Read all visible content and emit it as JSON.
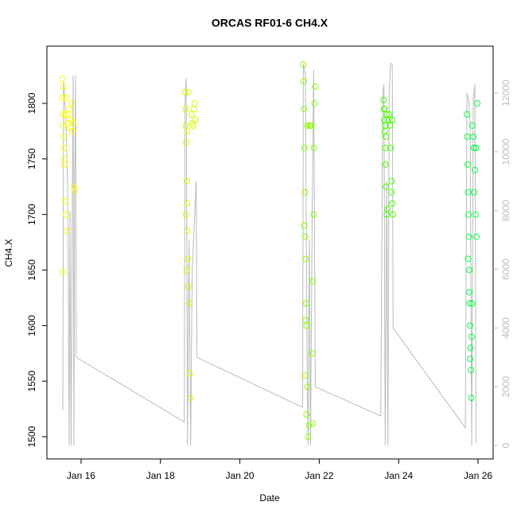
{
  "chart_data": {
    "type": "scatter",
    "title": "ORCAS RF01-6 CH4.X",
    "x_label": "Date",
    "y_label": "CH4.X",
    "xlim": [
      15.14,
      26.38
    ],
    "xticks": [
      {
        "value": 16,
        "label": "Jan 16"
      },
      {
        "value": 18,
        "label": "Jan 18"
      },
      {
        "value": 20,
        "label": "Jan 20"
      },
      {
        "value": 22,
        "label": "Jan 22"
      },
      {
        "value": 24,
        "label": "Jan 24"
      },
      {
        "value": 26,
        "label": "Jan 26"
      }
    ],
    "ylim": [
      1480,
      1851.5
    ],
    "yticks": [
      1500,
      1550,
      1600,
      1650,
      1700,
      1750,
      1800
    ],
    "y2lim": [
      -460,
      13600
    ],
    "y2ticks": [
      0,
      2000,
      4000,
      6000,
      8000,
      10000,
      12000
    ],
    "y2_color": "#bbbbbb",
    "series": [
      {
        "color": "#ffff00",
        "x": [
          15.52,
          15.53,
          15.54,
          15.55,
          15.56,
          15.57,
          15.58,
          15.6,
          15.62,
          15.64,
          15.66,
          15.68,
          15.7,
          15.72,
          15.74,
          15.76,
          15.78,
          15.8,
          15.82,
          15.85,
          15.54,
          15.56,
          15.58,
          15.6,
          15.62,
          15.64
        ],
        "values": [
          1822,
          1805,
          1790,
          1780,
          1770,
          1760,
          1745,
          1712,
          1700,
          1685,
          1782,
          1790,
          1795,
          1778,
          1785,
          1800,
          1775,
          1783,
          1725,
          1722,
          1648,
          1815,
          1750,
          1790,
          1805,
          1685
        ]
      },
      {
        "color": "#ccff00",
        "x": [
          18.62,
          18.63,
          18.64,
          18.65,
          18.66,
          18.67,
          18.68,
          18.69,
          18.7,
          18.72,
          18.74,
          18.76,
          18.78,
          18.8,
          18.82,
          18.84,
          18.86,
          18.88,
          18.64,
          18.66,
          18.68,
          18.7
        ],
        "values": [
          1810,
          1795,
          1780,
          1765,
          1730,
          1710,
          1685,
          1660,
          1635,
          1620,
          1557,
          1535,
          1790,
          1782,
          1780,
          1795,
          1800,
          1785,
          1700,
          1650,
          1775,
          1810
        ]
      },
      {
        "color": "#88ff00",
        "x": [
          21.6,
          21.61,
          21.62,
          21.63,
          21.64,
          21.65,
          21.66,
          21.67,
          21.68,
          21.7,
          21.72,
          21.74,
          21.76,
          21.78,
          21.8,
          21.82,
          21.84,
          21.86,
          21.88,
          21.9,
          21.62,
          21.64,
          21.66,
          21.68,
          21.7,
          21.84,
          21.86
        ],
        "values": [
          1835,
          1820,
          1795,
          1760,
          1720,
          1680,
          1660,
          1620,
          1600,
          1545,
          1500,
          1510,
          1780,
          1780,
          1780,
          1575,
          1640,
          1760,
          1800,
          1815,
          1690,
          1555,
          1605,
          1520,
          1780,
          1512,
          1700
        ]
      },
      {
        "color": "#44ff00",
        "x": [
          23.62,
          23.63,
          23.64,
          23.65,
          23.66,
          23.67,
          23.68,
          23.7,
          23.72,
          23.74,
          23.76,
          23.78,
          23.8,
          23.82,
          23.84,
          23.86,
          23.64,
          23.66,
          23.68,
          23.7,
          23.82,
          23.84
        ],
        "values": [
          1803,
          1795,
          1785,
          1775,
          1760,
          1745,
          1725,
          1700,
          1705,
          1785,
          1790,
          1780,
          1760,
          1720,
          1710,
          1700,
          1795,
          1780,
          1770,
          1790,
          1730,
          1785
        ]
      },
      {
        "color": "#00ff44",
        "x": [
          25.72,
          25.73,
          25.74,
          25.75,
          25.76,
          25.77,
          25.78,
          25.79,
          25.8,
          25.81,
          25.82,
          25.83,
          25.84,
          25.86,
          25.88,
          25.9,
          25.92,
          25.94,
          25.96,
          25.98,
          25.75,
          25.78,
          25.8,
          25.85,
          25.9,
          25.95
        ],
        "values": [
          1790,
          1770,
          1745,
          1720,
          1700,
          1680,
          1650,
          1620,
          1600,
          1580,
          1560,
          1535,
          1590,
          1780,
          1770,
          1760,
          1740,
          1700,
          1680,
          1800,
          1660,
          1630,
          1570,
          1620,
          1720,
          1760
        ]
      },
      {
        "type": "line",
        "axis": "y2",
        "color": "#bbbbbb",
        "x": [
          15.54,
          15.56,
          15.62,
          15.66,
          15.7,
          15.72,
          15.75,
          15.78,
          15.8,
          15.82,
          15.84,
          15.86,
          15.88,
          18.6,
          18.62,
          18.65,
          18.68,
          18.72,
          18.76,
          18.8,
          18.85,
          18.9,
          18.92,
          21.58,
          21.6,
          21.65,
          21.7,
          21.72,
          21.75,
          21.78,
          21.82,
          21.86,
          21.9,
          23.55,
          23.6,
          23.63,
          23.66,
          23.7,
          23.73,
          23.76,
          23.8,
          23.84,
          23.86,
          25.68,
          25.72,
          25.76,
          25.8,
          25.84,
          25.88,
          25.92,
          25.95
        ],
        "values": [
          1200,
          12400,
          11000,
          9000,
          0,
          8000,
          0,
          8500,
          12600,
          0,
          9000,
          12600,
          3000,
          800,
          11800,
          12500,
          0,
          7000,
          0,
          6000,
          7500,
          9000,
          3000,
          1300,
          13000,
          12600,
          2000,
          0,
          7000,
          0,
          7500,
          12800,
          2000,
          1000,
          12000,
          12300,
          0,
          9000,
          0,
          12000,
          13000,
          13000,
          4000,
          600,
          12000,
          11800,
          11000,
          0,
          11800,
          12300,
          100
        ]
      }
    ]
  }
}
